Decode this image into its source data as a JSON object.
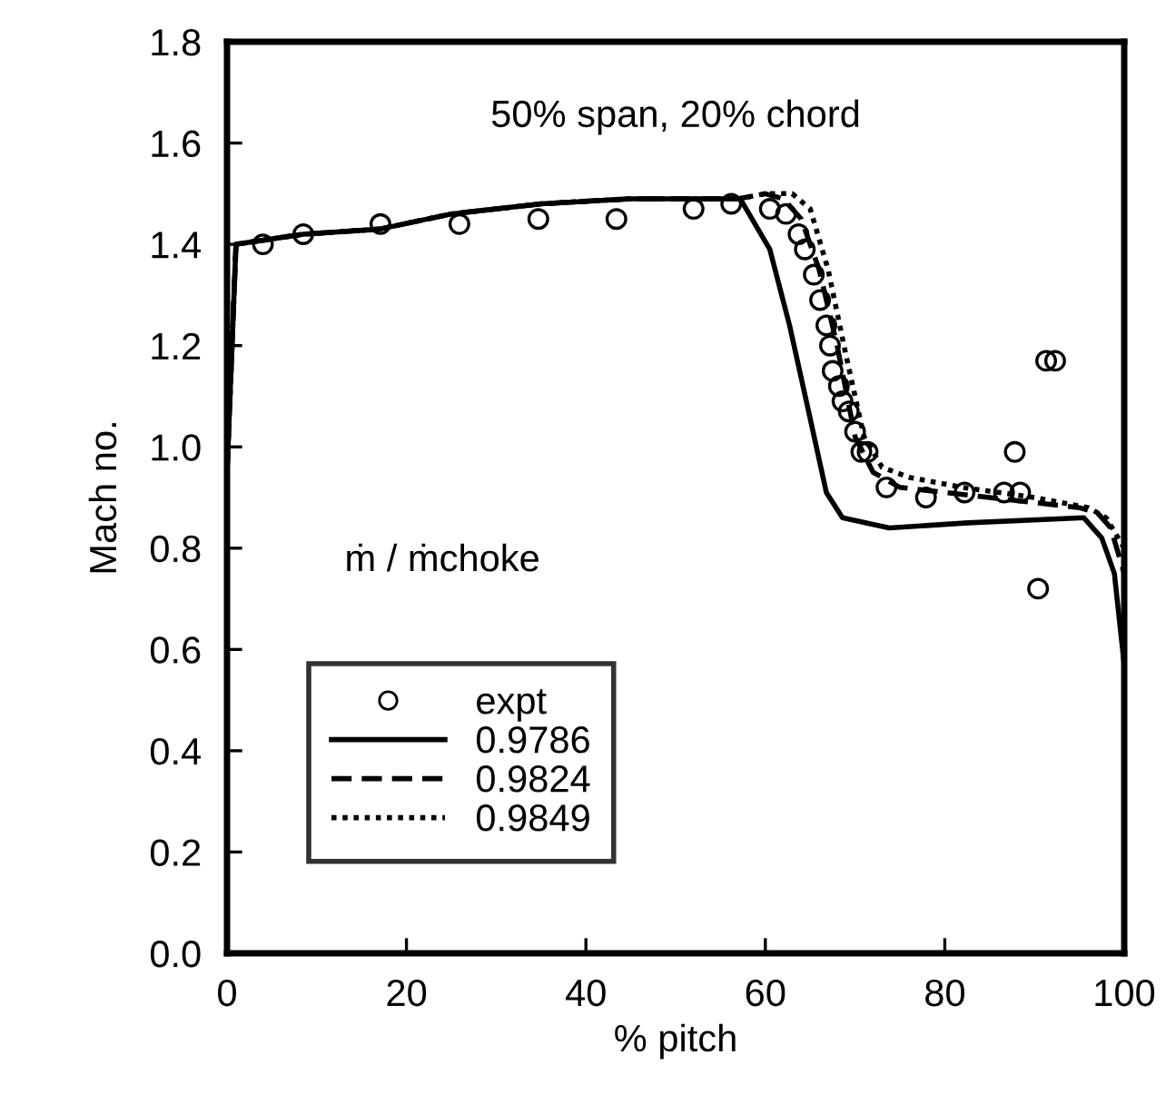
{
  "chart_data": {
    "type": "line",
    "title": "50% span, 20% chord",
    "xlabel": "% pitch",
    "ylabel": "Mach no.",
    "legend_title": "ṁ / ṁchoke",
    "legend": "bottom left",
    "grid": false,
    "xlim": [
      0,
      100
    ],
    "xticks": [
      0,
      20,
      40,
      60,
      80,
      100
    ],
    "ylim": [
      0.0,
      1.8
    ],
    "yticks": [
      {
        "value": 0,
        "label": "0.0"
      },
      0.2,
      0.4,
      0.6,
      0.8,
      {
        "value": 1,
        "label": "1.0"
      },
      1.2,
      1.4,
      1.6,
      1.8
    ],
    "series": [
      {
        "name": "expt",
        "type": "scatter",
        "marker": "circle",
        "color": "#000000",
        "x": [
          4.0,
          8.5,
          17.1,
          25.9,
          34.7,
          43.4,
          52.0,
          56.2,
          60.5,
          62.3,
          63.7,
          64.4,
          65.4,
          66.1,
          66.8,
          67.2,
          67.5,
          68.2,
          68.6,
          69.3,
          70.0,
          70.7,
          71.4,
          73.5,
          77.9,
          82.2,
          86.6,
          88.4,
          87.8,
          91.3,
          92.3,
          90.4
        ],
        "values": [
          1.4,
          1.42,
          1.44,
          1.44,
          1.45,
          1.45,
          1.47,
          1.48,
          1.47,
          1.46,
          1.42,
          1.39,
          1.34,
          1.29,
          1.24,
          1.2,
          1.15,
          1.12,
          1.09,
          1.07,
          1.03,
          0.99,
          0.99,
          0.92,
          0.9,
          0.91,
          0.91,
          0.91,
          0.99,
          1.17,
          1.17,
          0.72
        ]
      },
      {
        "name": "0.9786",
        "line_style": "solid",
        "color": "#000000",
        "x": [
          0,
          1,
          8.5,
          17,
          25,
          35,
          45,
          57.2,
          60.5,
          62.7,
          64.7,
          66.8,
          68.6,
          73.8,
          82.6,
          95.5,
          97.5,
          98.9,
          100
        ],
        "values": [
          0.95,
          1.4,
          1.42,
          1.43,
          1.46,
          1.48,
          1.49,
          1.49,
          1.39,
          1.24,
          1.08,
          0.91,
          0.86,
          0.84,
          0.85,
          0.86,
          0.82,
          0.75,
          0.57
        ]
      },
      {
        "name": "0.9824",
        "line_style": "dashed",
        "color": "#000000",
        "x": [
          0,
          1,
          8.5,
          17,
          25,
          35,
          45,
          57,
          60,
          62,
          64,
          66,
          68,
          70,
          72,
          75,
          80,
          85,
          90,
          95,
          97,
          98.5,
          100
        ],
        "values": [
          0.95,
          1.4,
          1.42,
          1.43,
          1.46,
          1.48,
          1.49,
          1.49,
          1.5,
          1.49,
          1.45,
          1.35,
          1.2,
          1.02,
          0.95,
          0.92,
          0.91,
          0.9,
          0.89,
          0.88,
          0.87,
          0.84,
          0.75
        ]
      },
      {
        "name": "0.9849",
        "line_style": "dotted",
        "color": "#000000",
        "x": [
          0,
          1,
          8.5,
          17,
          25,
          35,
          45,
          57,
          60,
          63,
          65,
          67,
          69,
          71,
          73,
          76,
          82,
          90,
          96,
          98,
          100
        ],
        "values": [
          0.95,
          1.4,
          1.42,
          1.43,
          1.46,
          1.48,
          1.49,
          1.49,
          1.5,
          1.5,
          1.47,
          1.35,
          1.18,
          1.02,
          0.96,
          0.94,
          0.92,
          0.9,
          0.88,
          0.86,
          0.8
        ]
      }
    ]
  }
}
